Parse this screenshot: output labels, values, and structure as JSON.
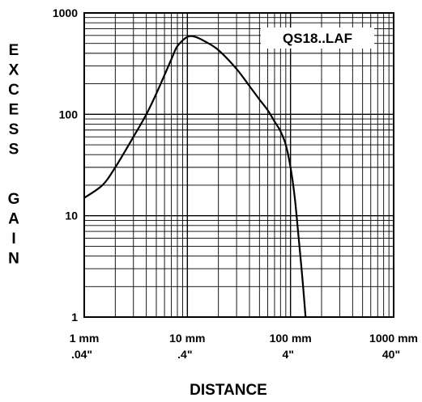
{
  "chart_data": {
    "type": "line",
    "title": "",
    "xlabel": "DISTANCE",
    "ylabel": "EXCESS GAIN",
    "xscale": "log",
    "yscale": "log",
    "xlim_mm": [
      1,
      1000
    ],
    "ylim": [
      1,
      1000
    ],
    "grid": true,
    "legend_position": "top-right",
    "legend_label": "QS18..LAF",
    "x_ticks": [
      {
        "mm": "1 mm",
        "in": ".04\""
      },
      {
        "mm": "10 mm",
        "in": ".4\""
      },
      {
        "mm": "100 mm",
        "in": "4\""
      },
      {
        "mm": "1000 mm",
        "in": "40\""
      }
    ],
    "y_ticks": [
      "1",
      "10",
      "100",
      "1000"
    ],
    "series": [
      {
        "name": "QS18..LAF",
        "x_mm": [
          1,
          1.5,
          2,
          3,
          4,
          5,
          7,
          8,
          10,
          12,
          15,
          20,
          30,
          40,
          50,
          60,
          70,
          80,
          90,
          100,
          110,
          120,
          130,
          140
        ],
        "y": [
          15,
          20,
          30,
          60,
          100,
          160,
          350,
          470,
          580,
          580,
          520,
          430,
          280,
          190,
          140,
          110,
          85,
          68,
          50,
          30,
          15,
          6,
          2.5,
          1
        ]
      }
    ]
  }
}
